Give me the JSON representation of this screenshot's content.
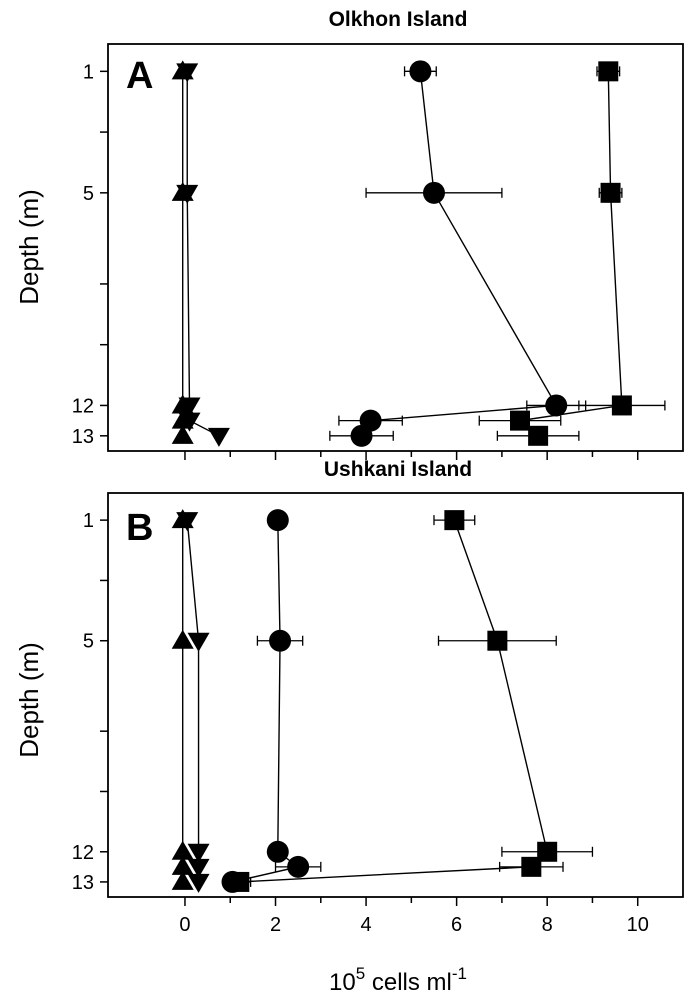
{
  "chart_data": [
    {
      "type": "line",
      "title": "Olkhon Island",
      "panel_label": "A",
      "ylabel": "Depth (m)",
      "xlabel": "",
      "y_tick_labels": [
        "1",
        "5",
        "12",
        "13"
      ],
      "y_ticks": [
        1,
        5,
        12,
        13
      ],
      "ylim": [
        13.5,
        0.1
      ],
      "xlim": [
        -1.7,
        11
      ],
      "grid": false,
      "series": [
        {
          "marker": "square",
          "color": "#000000",
          "points": [
            {
              "x": 9.35,
              "y": 1,
              "err": 0.25
            },
            {
              "x": 9.4,
              "y": 5,
              "err": 0.25
            },
            {
              "x": 9.65,
              "y": 12,
              "err": 0.95
            },
            {
              "x": 7.4,
              "y": 12.5,
              "err": 0.9
            },
            {
              "x": 7.8,
              "y": 13,
              "err": 0.9
            }
          ]
        },
        {
          "marker": "circle",
          "color": "#000000",
          "points": [
            {
              "x": 5.2,
              "y": 1,
              "err": 0.35
            },
            {
              "x": 5.5,
              "y": 5,
              "err": 1.5
            },
            {
              "x": 8.2,
              "y": 12,
              "err": 0.65
            },
            {
              "x": 4.1,
              "y": 12.5,
              "err": 0.7
            },
            {
              "x": 3.9,
              "y": 13,
              "err": 0.7
            }
          ]
        },
        {
          "marker": "triangle-down",
          "color": "#000000",
          "points": [
            {
              "x": 0.05,
              "y": 1
            },
            {
              "x": 0.05,
              "y": 5
            },
            {
              "x": 0.1,
              "y": 12
            },
            {
              "x": 0.1,
              "y": 12.5
            },
            {
              "x": 0.75,
              "y": 13
            }
          ]
        },
        {
          "marker": "triangle-up",
          "color": "#000000",
          "points": [
            {
              "x": -0.05,
              "y": 1
            },
            {
              "x": -0.05,
              "y": 5
            },
            {
              "x": -0.05,
              "y": 12
            },
            {
              "x": -0.05,
              "y": 12.5
            },
            {
              "x": -0.05,
              "y": 13
            }
          ]
        }
      ]
    },
    {
      "type": "line",
      "title": "Ushkani Island",
      "panel_label": "B",
      "ylabel": "Depth (m)",
      "xlabel": "10^5 cells ml^-1",
      "xlabel_base": "10",
      "xlabel_exp": "5",
      "xlabel_mid": " cells ml",
      "xlabel_exp2": "-1",
      "x_ticks": [
        0,
        2,
        4,
        6,
        8,
        10
      ],
      "x_tick_labels": [
        "0",
        "2",
        "4",
        "6",
        "8",
        "10"
      ],
      "y_tick_labels": [
        "1",
        "5",
        "12",
        "13"
      ],
      "y_ticks": [
        1,
        5,
        12,
        13
      ],
      "ylim": [
        13.5,
        0.1
      ],
      "xlim": [
        -1.7,
        11
      ],
      "grid": false,
      "series": [
        {
          "marker": "square",
          "color": "#000000",
          "points": [
            {
              "x": 5.95,
              "y": 1,
              "err": 0.45
            },
            {
              "x": 6.9,
              "y": 5,
              "err": 1.3
            },
            {
              "x": 8.0,
              "y": 12,
              "err": 1.0
            },
            {
              "x": 7.65,
              "y": 12.5,
              "err": 0.7
            },
            {
              "x": 1.2,
              "y": 13,
              "err": 0.25
            }
          ]
        },
        {
          "marker": "circle",
          "color": "#000000",
          "points": [
            {
              "x": 2.05,
              "y": 1,
              "err": 0.0
            },
            {
              "x": 2.1,
              "y": 5,
              "err": 0.5
            },
            {
              "x": 2.05,
              "y": 12,
              "err": 0.0
            },
            {
              "x": 2.5,
              "y": 12.5,
              "err": 0.5
            },
            {
              "x": 1.05,
              "y": 13,
              "err": 0.0
            }
          ]
        },
        {
          "marker": "triangle-down",
          "color": "#000000",
          "points": [
            {
              "x": 0.05,
              "y": 1
            },
            {
              "x": 0.3,
              "y": 5
            },
            {
              "x": 0.3,
              "y": 12
            },
            {
              "x": 0.3,
              "y": 12.5
            },
            {
              "x": 0.3,
              "y": 13
            }
          ]
        },
        {
          "marker": "triangle-up",
          "color": "#000000",
          "points": [
            {
              "x": -0.05,
              "y": 1
            },
            {
              "x": -0.05,
              "y": 5
            },
            {
              "x": -0.05,
              "y": 12
            },
            {
              "x": -0.05,
              "y": 12.5
            },
            {
              "x": -0.05,
              "y": 13
            }
          ]
        }
      ]
    }
  ]
}
